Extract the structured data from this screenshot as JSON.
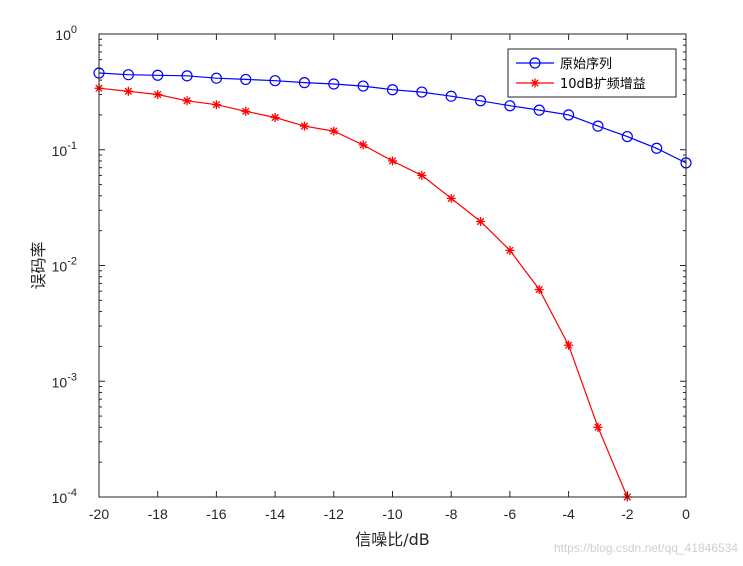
{
  "chart_data": {
    "type": "line",
    "xlabel": "信噪比/dB",
    "ylabel": "误码率",
    "xlim": [
      -20,
      0
    ],
    "ylim": [
      0.0001,
      1
    ],
    "yscale": "log",
    "grid": false,
    "legend_position": "top-right",
    "x_ticks": [
      -20,
      -18,
      -16,
      -14,
      -12,
      -10,
      -8,
      -6,
      -4,
      -2,
      0
    ],
    "y_ticks": [
      {
        "base": "10",
        "exp": "-4"
      },
      {
        "base": "10",
        "exp": "-3"
      },
      {
        "base": "10",
        "exp": "-2"
      },
      {
        "base": "10",
        "exp": "-1"
      },
      {
        "base": "10",
        "exp": "0"
      }
    ],
    "series": [
      {
        "name": "原始序列",
        "color": "#0000ff",
        "marker": "circle",
        "x": [
          -20,
          -19,
          -18,
          -17,
          -16,
          -15,
          -14,
          -13,
          -12,
          -11,
          -10,
          -9,
          -8,
          -7,
          -6,
          -5,
          -4,
          -3,
          -2,
          -1,
          0
        ],
        "values": [
          0.46,
          0.445,
          0.44,
          0.435,
          0.415,
          0.405,
          0.395,
          0.38,
          0.37,
          0.355,
          0.33,
          0.315,
          0.29,
          0.265,
          0.24,
          0.22,
          0.2,
          0.16,
          0.13,
          0.103,
          0.077
        ]
      },
      {
        "name": "10dB扩频增益",
        "color": "#ff0000",
        "marker": "asterisk",
        "x": [
          -20,
          -19,
          -18,
          -17,
          -16,
          -15,
          -14,
          -13,
          -12,
          -11,
          -10,
          -9,
          -8,
          -7,
          -6,
          -5,
          -4,
          -3,
          -2
        ],
        "values": [
          0.34,
          0.32,
          0.3,
          0.265,
          0.245,
          0.215,
          0.19,
          0.16,
          0.145,
          0.11,
          0.08,
          0.06,
          0.038,
          0.024,
          0.0135,
          0.0062,
          0.00205,
          0.0004,
          0.0001
        ]
      }
    ]
  },
  "watermark": "https://blog.csdn.net/qq_41846534"
}
